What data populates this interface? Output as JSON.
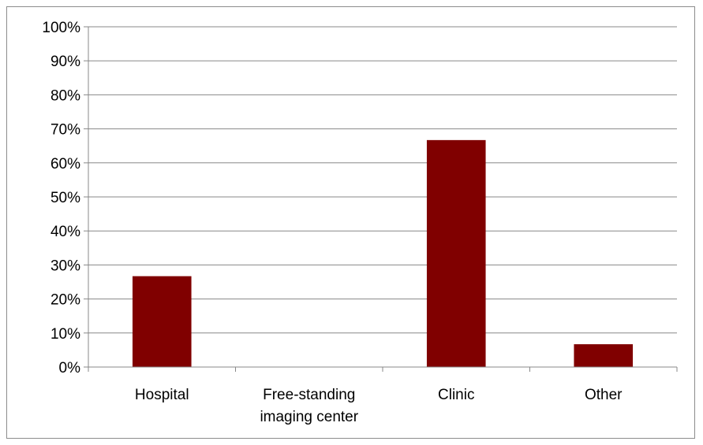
{
  "chart_data": {
    "type": "bar",
    "categories": [
      "Hospital",
      "Free-standing imaging center",
      "Clinic",
      "Other"
    ],
    "category_label_lines": [
      [
        "Hospital"
      ],
      [
        "Free-standing",
        "imaging center"
      ],
      [
        "Clinic"
      ],
      [
        "Other"
      ]
    ],
    "values": [
      26.7,
      0,
      66.7,
      6.7
    ],
    "ylim": [
      0,
      100
    ],
    "y_ticks": [
      "0%",
      "10%",
      "20%",
      "30%",
      "40%",
      "50%",
      "60%",
      "70%",
      "80%",
      "90%",
      "100%"
    ],
    "grid": true,
    "legend": "none",
    "bar_color": "#800000",
    "grid_color": "#888888",
    "axis_color": "#888888"
  }
}
